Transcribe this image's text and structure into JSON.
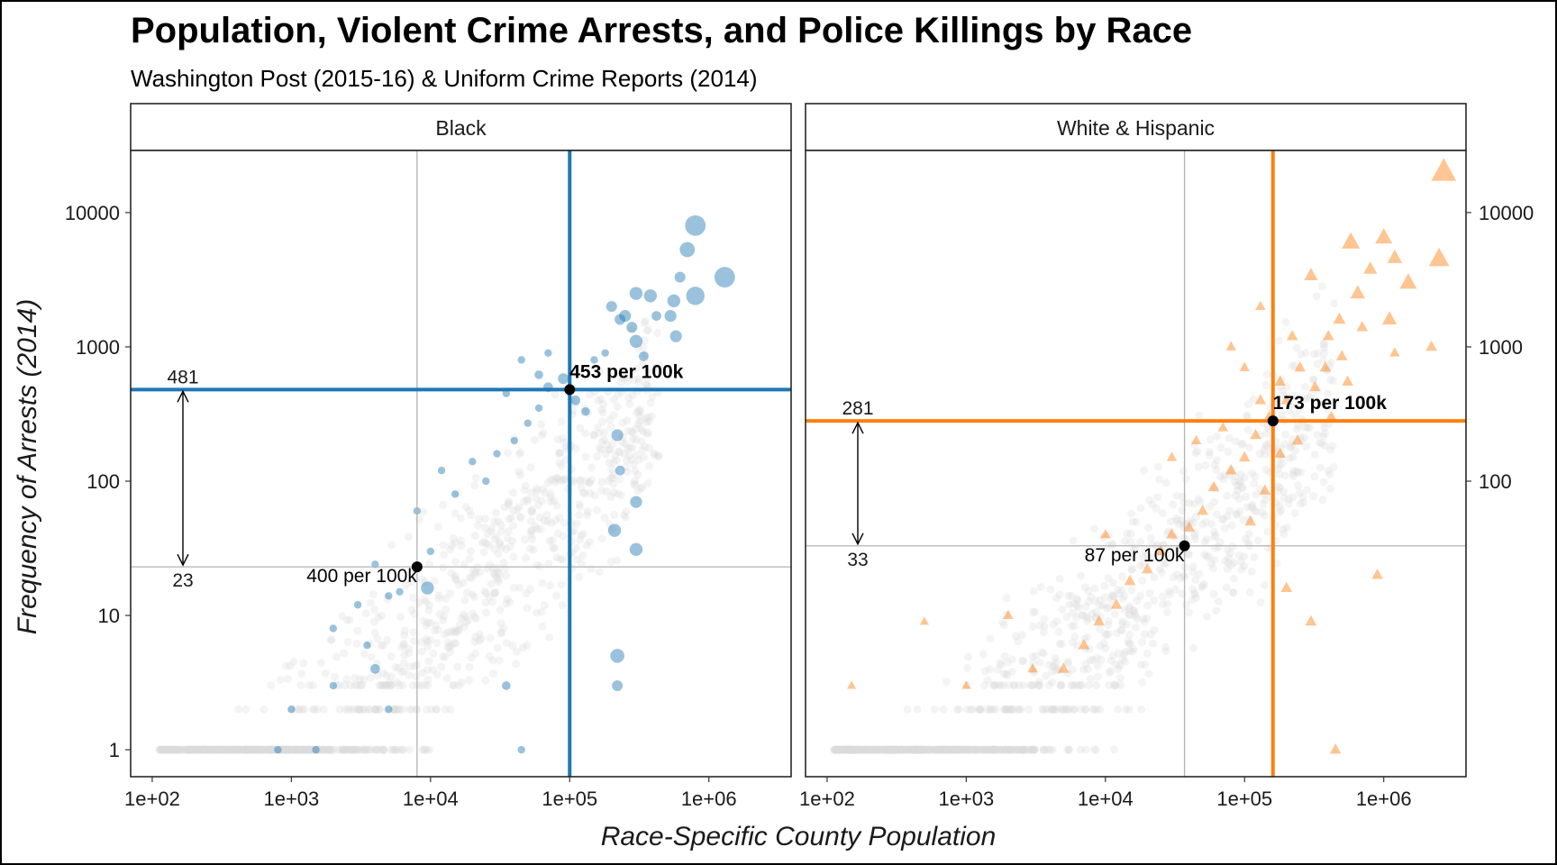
{
  "chart_data": {
    "type": "scatter",
    "title": "Population, Violent Crime Arrests, and Police Killings by Race",
    "subtitle": "Washington Post (2015-16) & Uniform Crime Reports (2014)",
    "xlabel": "Race-Specific County Population",
    "ylabel": "Frequency of Arrests (2014)",
    "x_scale": "log10",
    "y_scale": "log10",
    "xlim": [
      70,
      3900000
    ],
    "x_ticks": [
      100,
      1000,
      10000,
      100000,
      1000000
    ],
    "x_tick_labels": [
      "1e+02",
      "1e+03",
      "1e+04",
      "1e+05",
      "1e+06"
    ],
    "panels": [
      {
        "name": "Black",
        "color": "#1f77b4",
        "marker": "circle",
        "ylim": [
          0.63,
          29000
        ],
        "y_ticks": [
          1,
          10,
          100,
          1000,
          10000
        ],
        "y_tick_labels": [
          "1",
          "10",
          "100",
          "1000",
          "10000"
        ],
        "y_axis_side": "left",
        "median_point": {
          "x": 8000,
          "y": 23,
          "label": "400 per 100k"
        },
        "weighted_point": {
          "x": 100000,
          "y": 481,
          "label": "453 per 100k"
        },
        "range_labels": {
          "high": "481",
          "low": "23"
        },
        "highlight_points": [
          {
            "x": 800000,
            "y": 8000,
            "s": 1.9
          },
          {
            "x": 1300000,
            "y": 3300,
            "s": 1.9
          },
          {
            "x": 700000,
            "y": 5300,
            "s": 1.4
          },
          {
            "x": 800000,
            "y": 2400,
            "s": 1.7
          },
          {
            "x": 300000,
            "y": 2500,
            "s": 1.2
          },
          {
            "x": 380000,
            "y": 2400,
            "s": 1.2
          },
          {
            "x": 560000,
            "y": 2200,
            "s": 1.2
          },
          {
            "x": 620000,
            "y": 3300,
            "s": 1.0
          },
          {
            "x": 530000,
            "y": 1700,
            "s": 1.1
          },
          {
            "x": 580000,
            "y": 1200,
            "s": 1.1
          },
          {
            "x": 250000,
            "y": 1700,
            "s": 1.1
          },
          {
            "x": 200000,
            "y": 2000,
            "s": 1.0
          },
          {
            "x": 230000,
            "y": 1600,
            "s": 1.0
          },
          {
            "x": 280000,
            "y": 1400,
            "s": 1.0
          },
          {
            "x": 300000,
            "y": 1100,
            "s": 1.2
          },
          {
            "x": 420000,
            "y": 1700,
            "s": 0.9
          },
          {
            "x": 340000,
            "y": 850,
            "s": 0.9
          },
          {
            "x": 220000,
            "y": 220,
            "s": 1.1
          },
          {
            "x": 230000,
            "y": 120,
            "s": 0.9
          },
          {
            "x": 300000,
            "y": 70,
            "s": 1.1
          },
          {
            "x": 210000,
            "y": 43,
            "s": 1.2
          },
          {
            "x": 300000,
            "y": 31,
            "s": 1.2
          },
          {
            "x": 220000,
            "y": 5,
            "s": 1.3
          },
          {
            "x": 220000,
            "y": 3,
            "s": 1.0
          },
          {
            "x": 90000,
            "y": 580,
            "s": 1.0
          },
          {
            "x": 70000,
            "y": 500,
            "s": 0.9
          },
          {
            "x": 60000,
            "y": 620,
            "s": 0.8
          },
          {
            "x": 110000,
            "y": 400,
            "s": 0.9
          },
          {
            "x": 130000,
            "y": 330,
            "s": 0.8
          },
          {
            "x": 50000,
            "y": 270,
            "s": 0.7
          },
          {
            "x": 40000,
            "y": 200,
            "s": 0.7
          },
          {
            "x": 150000,
            "y": 800,
            "s": 0.7
          },
          {
            "x": 180000,
            "y": 900,
            "s": 0.7
          },
          {
            "x": 45000,
            "y": 800,
            "s": 0.7
          },
          {
            "x": 60000,
            "y": 350,
            "s": 0.7
          },
          {
            "x": 20000,
            "y": 140,
            "s": 0.7
          },
          {
            "x": 30000,
            "y": 160,
            "s": 0.7
          },
          {
            "x": 25000,
            "y": 100,
            "s": 0.7
          },
          {
            "x": 15000,
            "y": 80,
            "s": 0.7
          },
          {
            "x": 12000,
            "y": 120,
            "s": 0.7
          },
          {
            "x": 8000,
            "y": 60,
            "s": 0.7
          },
          {
            "x": 10000,
            "y": 30,
            "s": 0.7
          },
          {
            "x": 9500,
            "y": 16,
            "s": 1.2
          },
          {
            "x": 5000,
            "y": 14,
            "s": 0.7
          },
          {
            "x": 3000,
            "y": 12,
            "s": 0.7
          },
          {
            "x": 3500,
            "y": 6,
            "s": 0.7
          },
          {
            "x": 2000,
            "y": 8,
            "s": 0.7
          },
          {
            "x": 4000,
            "y": 4,
            "s": 0.9
          },
          {
            "x": 5000,
            "y": 2,
            "s": 0.7
          },
          {
            "x": 1000,
            "y": 2,
            "s": 0.7
          },
          {
            "x": 2000,
            "y": 3,
            "s": 0.7
          },
          {
            "x": 1500,
            "y": 1,
            "s": 0.7
          },
          {
            "x": 800,
            "y": 1,
            "s": 0.7
          },
          {
            "x": 35000,
            "y": 3,
            "s": 0.8
          },
          {
            "x": 45000,
            "y": 1,
            "s": 0.7
          },
          {
            "x": 6000,
            "y": 15,
            "s": 0.7
          },
          {
            "x": 4000,
            "y": 24,
            "s": 0.7
          },
          {
            "x": 70000,
            "y": 900,
            "s": 0.7
          },
          {
            "x": 35000,
            "y": 450,
            "s": 0.7
          }
        ]
      },
      {
        "name": "White & Hispanic",
        "color": "#ff7f0e",
        "marker": "triangle",
        "ylim": [
          0.63,
          29000
        ],
        "y_ticks": [
          100,
          1000,
          10000
        ],
        "y_tick_labels": [
          "100",
          "1000",
          "10000"
        ],
        "y_axis_side": "right",
        "median_point": {
          "x": 37000,
          "y": 33,
          "label": "87 per 100k"
        },
        "weighted_point": {
          "x": 160000,
          "y": 281,
          "label": "173 per 100k"
        },
        "range_labels": {
          "high": "281",
          "low": "33"
        },
        "highlight_points": [
          {
            "x": 2700000,
            "y": 20000,
            "s": 2.2
          },
          {
            "x": 2500000,
            "y": 4500,
            "s": 1.8
          },
          {
            "x": 1000000,
            "y": 6500,
            "s": 1.5
          },
          {
            "x": 580000,
            "y": 6000,
            "s": 1.6
          },
          {
            "x": 1200000,
            "y": 4600,
            "s": 1.3
          },
          {
            "x": 1500000,
            "y": 3000,
            "s": 1.5
          },
          {
            "x": 800000,
            "y": 3800,
            "s": 1.2
          },
          {
            "x": 300000,
            "y": 3400,
            "s": 1.2
          },
          {
            "x": 650000,
            "y": 2500,
            "s": 1.3
          },
          {
            "x": 1100000,
            "y": 1600,
            "s": 1.3
          },
          {
            "x": 2200000,
            "y": 1000,
            "s": 1.0
          },
          {
            "x": 1200000,
            "y": 900,
            "s": 0.9
          },
          {
            "x": 480000,
            "y": 1600,
            "s": 1.1
          },
          {
            "x": 700000,
            "y": 1400,
            "s": 1.0
          },
          {
            "x": 380000,
            "y": 700,
            "s": 1.0
          },
          {
            "x": 500000,
            "y": 850,
            "s": 1.0
          },
          {
            "x": 220000,
            "y": 1200,
            "s": 1.0
          },
          {
            "x": 250000,
            "y": 700,
            "s": 1.0
          },
          {
            "x": 320000,
            "y": 500,
            "s": 1.0
          },
          {
            "x": 420000,
            "y": 300,
            "s": 1.0
          },
          {
            "x": 200000,
            "y": 400,
            "s": 1.0
          },
          {
            "x": 150000,
            "y": 300,
            "s": 1.0
          },
          {
            "x": 120000,
            "y": 220,
            "s": 1.0
          },
          {
            "x": 100000,
            "y": 150,
            "s": 1.0
          },
          {
            "x": 80000,
            "y": 120,
            "s": 1.0
          },
          {
            "x": 60000,
            "y": 90,
            "s": 1.0
          },
          {
            "x": 50000,
            "y": 60,
            "s": 1.0
          },
          {
            "x": 40000,
            "y": 45,
            "s": 1.0
          },
          {
            "x": 30000,
            "y": 40,
            "s": 1.0
          },
          {
            "x": 25000,
            "y": 30,
            "s": 1.0
          },
          {
            "x": 20000,
            "y": 22,
            "s": 1.0
          },
          {
            "x": 15000,
            "y": 18,
            "s": 1.0
          },
          {
            "x": 12000,
            "y": 12,
            "s": 1.0
          },
          {
            "x": 9000,
            "y": 9,
            "s": 1.0
          },
          {
            "x": 7000,
            "y": 6,
            "s": 1.0
          },
          {
            "x": 5000,
            "y": 4,
            "s": 1.0
          },
          {
            "x": 3000,
            "y": 4,
            "s": 0.9
          },
          {
            "x": 2000,
            "y": 10,
            "s": 0.9
          },
          {
            "x": 1000,
            "y": 3,
            "s": 0.8
          },
          {
            "x": 150,
            "y": 3,
            "s": 0.8
          },
          {
            "x": 500,
            "y": 9,
            "s": 0.8
          },
          {
            "x": 200000,
            "y": 16,
            "s": 1.0
          },
          {
            "x": 300000,
            "y": 9,
            "s": 1.0
          },
          {
            "x": 900000,
            "y": 20,
            "s": 1.0
          },
          {
            "x": 110000,
            "y": 50,
            "s": 1.0
          },
          {
            "x": 140000,
            "y": 85,
            "s": 1.0
          },
          {
            "x": 180000,
            "y": 160,
            "s": 1.0
          },
          {
            "x": 240000,
            "y": 200,
            "s": 1.0
          },
          {
            "x": 550000,
            "y": 550,
            "s": 1.0
          },
          {
            "x": 70000,
            "y": 250,
            "s": 0.9
          },
          {
            "x": 45000,
            "y": 200,
            "s": 0.9
          },
          {
            "x": 30000,
            "y": 150,
            "s": 0.9
          },
          {
            "x": 10000,
            "y": 40,
            "s": 0.9
          },
          {
            "x": 450000,
            "y": 1,
            "s": 1.0
          },
          {
            "x": 100000,
            "y": 700,
            "s": 0.9
          },
          {
            "x": 80000,
            "y": 1000,
            "s": 0.9
          },
          {
            "x": 130000,
            "y": 2000,
            "s": 0.9
          },
          {
            "x": 400000,
            "y": 1200,
            "s": 1.0
          },
          {
            "x": 180000,
            "y": 550,
            "s": 1.0
          },
          {
            "x": 130000,
            "y": 400,
            "s": 1.0
          }
        ]
      }
    ],
    "background_points_color": "#d9d9d9",
    "grid": false
  }
}
